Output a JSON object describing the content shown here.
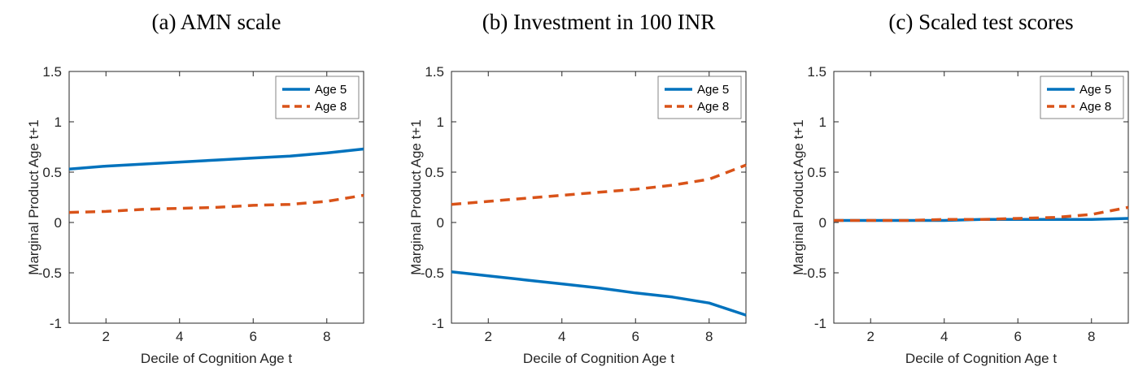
{
  "figure": {
    "background": "#ffffff",
    "axis_color": "#262626"
  },
  "chart_data": [
    {
      "type": "line",
      "title": "(a) AMN scale",
      "xlabel": "Decile of Cognition Age t",
      "ylabel": "Marginal Product Age t+1",
      "x": [
        1,
        2,
        3,
        4,
        5,
        6,
        7,
        8,
        9
      ],
      "xlim": [
        1,
        9
      ],
      "ylim": [
        -1,
        1.5
      ],
      "xticks": [
        2,
        4,
        6,
        8
      ],
      "yticks": [
        -1,
        -0.5,
        0,
        0.5,
        1,
        1.5
      ],
      "grid": false,
      "legend_position": "top-right",
      "series": [
        {
          "name": "Age 5",
          "color": "#0072BD",
          "style": "solid",
          "values": [
            0.53,
            0.56,
            0.58,
            0.6,
            0.62,
            0.64,
            0.66,
            0.69,
            0.73
          ]
        },
        {
          "name": "Age 8",
          "color": "#D95319",
          "style": "dashed",
          "values": [
            0.1,
            0.11,
            0.13,
            0.14,
            0.15,
            0.17,
            0.18,
            0.21,
            0.27
          ]
        }
      ]
    },
    {
      "type": "line",
      "title": "(b) Investment in 100 INR",
      "xlabel": "Decile of Cognition Age t",
      "ylabel": "Marginal Product Age t+1",
      "x": [
        1,
        2,
        3,
        4,
        5,
        6,
        7,
        8,
        9
      ],
      "xlim": [
        1,
        9
      ],
      "ylim": [
        -1,
        1.5
      ],
      "xticks": [
        2,
        4,
        6,
        8
      ],
      "yticks": [
        -1,
        -0.5,
        0,
        0.5,
        1,
        1.5
      ],
      "grid": false,
      "legend_position": "top-right",
      "series": [
        {
          "name": "Age 5",
          "color": "#0072BD",
          "style": "solid",
          "values": [
            -0.49,
            -0.53,
            -0.57,
            -0.61,
            -0.65,
            -0.7,
            -0.74,
            -0.8,
            -0.92
          ]
        },
        {
          "name": "Age 8",
          "color": "#D95319",
          "style": "dashed",
          "values": [
            0.18,
            0.21,
            0.24,
            0.27,
            0.3,
            0.33,
            0.37,
            0.43,
            0.57
          ]
        }
      ]
    },
    {
      "type": "line",
      "title": "(c) Scaled test scores",
      "xlabel": "Decile of Cognition Age t",
      "ylabel": "Marginal Product Age t+1",
      "x": [
        1,
        2,
        3,
        4,
        5,
        6,
        7,
        8,
        9
      ],
      "xlim": [
        1,
        9
      ],
      "ylim": [
        -1,
        1.5
      ],
      "xticks": [
        2,
        4,
        6,
        8
      ],
      "yticks": [
        -1,
        -0.5,
        0,
        0.5,
        1,
        1.5
      ],
      "grid": false,
      "legend_position": "top-right",
      "series": [
        {
          "name": "Age 5",
          "color": "#0072BD",
          "style": "solid",
          "values": [
            0.02,
            0.02,
            0.02,
            0.02,
            0.03,
            0.03,
            0.03,
            0.03,
            0.04
          ]
        },
        {
          "name": "Age 8",
          "color": "#D95319",
          "style": "dashed",
          "values": [
            0.02,
            0.02,
            0.02,
            0.03,
            0.03,
            0.04,
            0.05,
            0.08,
            0.15
          ]
        }
      ]
    }
  ]
}
